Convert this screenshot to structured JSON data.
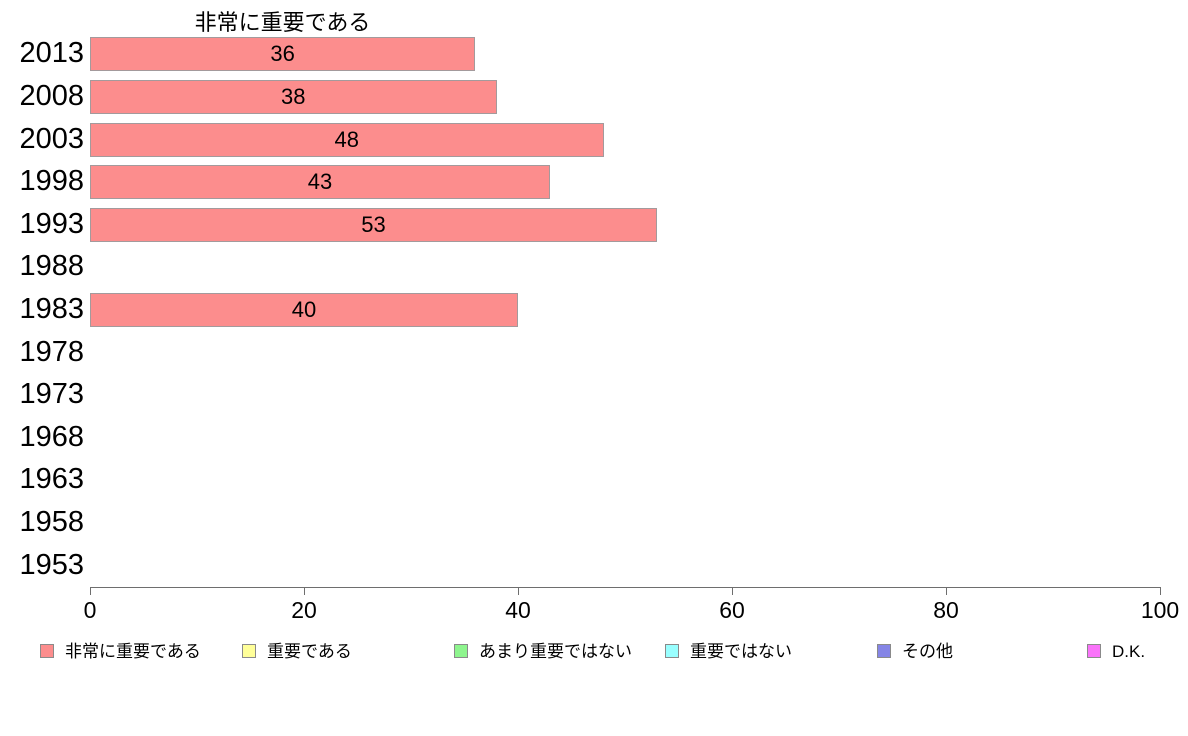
{
  "chart_data": {
    "type": "bar",
    "orientation": "horizontal",
    "title": "非常に重要である",
    "categories": [
      "2013",
      "2008",
      "2003",
      "1998",
      "1993",
      "1988",
      "1983",
      "1978",
      "1973",
      "1968",
      "1963",
      "1958",
      "1953"
    ],
    "values": [
      36,
      38,
      48,
      43,
      53,
      null,
      40,
      null,
      null,
      null,
      null,
      null,
      null
    ],
    "xlim": [
      0,
      100
    ],
    "x_ticks": [
      0,
      20,
      40,
      60,
      80,
      100
    ],
    "grid": "off",
    "bar_color": "#fc8d8d",
    "bar_border_color": "#a39a9c",
    "legend_position": "bottom",
    "legend": [
      {
        "label": "非常に重要である",
        "color": "#fc8d8d"
      },
      {
        "label": "重要である",
        "color": "#ffff99"
      },
      {
        "label": "あまり重要ではない",
        "color": "#8ef58e"
      },
      {
        "label": "重要ではない",
        "color": "#99ffff"
      },
      {
        "label": "その他",
        "color": "#8585e6"
      },
      {
        "label": "D.K.",
        "color": "#f973f9"
      }
    ]
  }
}
